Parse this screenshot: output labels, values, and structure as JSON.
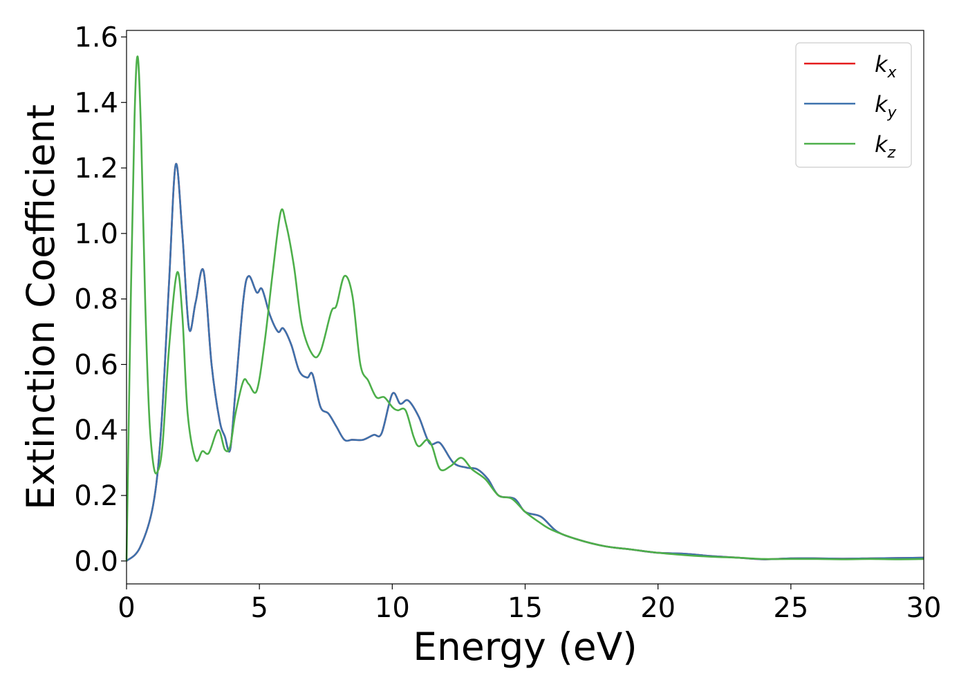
{
  "chart_data": {
    "type": "line",
    "xlabel": "Energy (eV)",
    "ylabel": "Extinction Coefficient",
    "xlim": [
      0,
      30
    ],
    "ylim": [
      -0.07,
      1.62
    ],
    "xticks": [
      "0",
      "5",
      "10",
      "15",
      "20",
      "25",
      "30"
    ],
    "yticks": [
      "0.0",
      "0.2",
      "0.4",
      "0.6",
      "0.8",
      "1.0",
      "1.2",
      "1.4",
      "1.6"
    ],
    "grid": false,
    "legend_position": "top-right",
    "series": [
      {
        "name": "k_x",
        "label_main": "k",
        "label_sub": "x",
        "color": "#e41a1c",
        "x": [
          0,
          0.5,
          1.0,
          1.3,
          1.6,
          1.85,
          2.1,
          2.35,
          2.6,
          2.9,
          3.2,
          3.5,
          3.7,
          3.9,
          4.1,
          4.4,
          4.6,
          4.9,
          5.1,
          5.4,
          5.7,
          5.9,
          6.2,
          6.5,
          6.8,
          7.0,
          7.3,
          7.6,
          7.9,
          8.2,
          8.5,
          8.9,
          9.3,
          9.6,
          10.0,
          10.3,
          10.6,
          11.0,
          11.4,
          11.8,
          12.3,
          12.8,
          13.2,
          13.6,
          14.0,
          14.6,
          15.0,
          15.6,
          16.2,
          17.0,
          18.0,
          19.0,
          20.0,
          21.0,
          22.0,
          23.0,
          24.0,
          25.0,
          26.0,
          27.0,
          28.0,
          29.0,
          30.0
        ],
        "y": [
          0.0,
          0.04,
          0.17,
          0.4,
          0.85,
          1.21,
          1.0,
          0.71,
          0.79,
          0.885,
          0.6,
          0.43,
          0.38,
          0.34,
          0.52,
          0.8,
          0.87,
          0.82,
          0.83,
          0.75,
          0.7,
          0.71,
          0.66,
          0.58,
          0.56,
          0.57,
          0.47,
          0.45,
          0.41,
          0.37,
          0.37,
          0.37,
          0.385,
          0.39,
          0.51,
          0.48,
          0.49,
          0.44,
          0.36,
          0.36,
          0.3,
          0.285,
          0.28,
          0.25,
          0.2,
          0.19,
          0.15,
          0.135,
          0.09,
          0.065,
          0.045,
          0.035,
          0.025,
          0.022,
          0.015,
          0.01,
          0.005,
          0.008,
          0.008,
          0.007,
          0.008,
          0.009,
          0.01
        ]
      },
      {
        "name": "k_y",
        "label_main": "k",
        "label_sub": "y",
        "color": "#3d72ad",
        "x": [
          0,
          0.5,
          1.0,
          1.3,
          1.6,
          1.85,
          2.1,
          2.35,
          2.6,
          2.9,
          3.2,
          3.5,
          3.7,
          3.9,
          4.1,
          4.4,
          4.6,
          4.9,
          5.1,
          5.4,
          5.7,
          5.9,
          6.2,
          6.5,
          6.8,
          7.0,
          7.3,
          7.6,
          7.9,
          8.2,
          8.5,
          8.9,
          9.3,
          9.6,
          10.0,
          10.3,
          10.6,
          11.0,
          11.4,
          11.8,
          12.3,
          12.8,
          13.2,
          13.6,
          14.0,
          14.6,
          15.0,
          15.6,
          16.2,
          17.0,
          18.0,
          19.0,
          20.0,
          21.0,
          22.0,
          23.0,
          24.0,
          25.0,
          26.0,
          27.0,
          28.0,
          29.0,
          30.0
        ],
        "y": [
          0.0,
          0.04,
          0.17,
          0.4,
          0.85,
          1.21,
          1.0,
          0.71,
          0.79,
          0.885,
          0.6,
          0.43,
          0.38,
          0.34,
          0.52,
          0.8,
          0.87,
          0.82,
          0.83,
          0.75,
          0.7,
          0.71,
          0.66,
          0.58,
          0.56,
          0.57,
          0.47,
          0.45,
          0.41,
          0.37,
          0.37,
          0.37,
          0.385,
          0.39,
          0.51,
          0.48,
          0.49,
          0.44,
          0.36,
          0.36,
          0.3,
          0.285,
          0.28,
          0.25,
          0.2,
          0.19,
          0.15,
          0.135,
          0.09,
          0.065,
          0.045,
          0.035,
          0.025,
          0.022,
          0.015,
          0.01,
          0.005,
          0.008,
          0.008,
          0.007,
          0.008,
          0.009,
          0.01
        ]
      },
      {
        "name": "k_z",
        "label_main": "k",
        "label_sub": "z",
        "color": "#4daf4a",
        "x": [
          0,
          0.15,
          0.3,
          0.42,
          0.55,
          0.7,
          0.85,
          1.0,
          1.15,
          1.35,
          1.6,
          1.9,
          2.1,
          2.3,
          2.6,
          2.85,
          3.1,
          3.45,
          3.7,
          3.9,
          4.1,
          4.4,
          4.6,
          4.9,
          5.2,
          5.5,
          5.8,
          6.0,
          6.3,
          6.6,
          7.0,
          7.3,
          7.7,
          7.9,
          8.2,
          8.5,
          8.8,
          9.1,
          9.4,
          9.7,
          10.0,
          10.2,
          10.5,
          10.8,
          11.0,
          11.3,
          11.5,
          11.8,
          12.2,
          12.6,
          13.0,
          13.5,
          14.0,
          14.5,
          15.0,
          15.5,
          16.0,
          17.0,
          18.0,
          19.0,
          20.0,
          21.0,
          22.0,
          23.0,
          24.0,
          25.0,
          26.0,
          27.0,
          28.0,
          29.0,
          30.0
        ],
        "y": [
          0.0,
          0.75,
          1.35,
          1.54,
          1.3,
          0.8,
          0.45,
          0.3,
          0.27,
          0.35,
          0.65,
          0.88,
          0.75,
          0.45,
          0.31,
          0.335,
          0.33,
          0.4,
          0.34,
          0.35,
          0.45,
          0.55,
          0.54,
          0.52,
          0.67,
          0.88,
          1.065,
          1.03,
          0.9,
          0.72,
          0.63,
          0.64,
          0.76,
          0.78,
          0.87,
          0.81,
          0.6,
          0.55,
          0.5,
          0.5,
          0.47,
          0.46,
          0.46,
          0.38,
          0.35,
          0.37,
          0.35,
          0.28,
          0.29,
          0.315,
          0.28,
          0.25,
          0.2,
          0.19,
          0.15,
          0.12,
          0.095,
          0.065,
          0.045,
          0.035,
          0.025,
          0.018,
          0.013,
          0.01,
          0.006,
          0.006,
          0.006,
          0.005,
          0.006,
          0.005,
          0.006
        ]
      }
    ]
  }
}
